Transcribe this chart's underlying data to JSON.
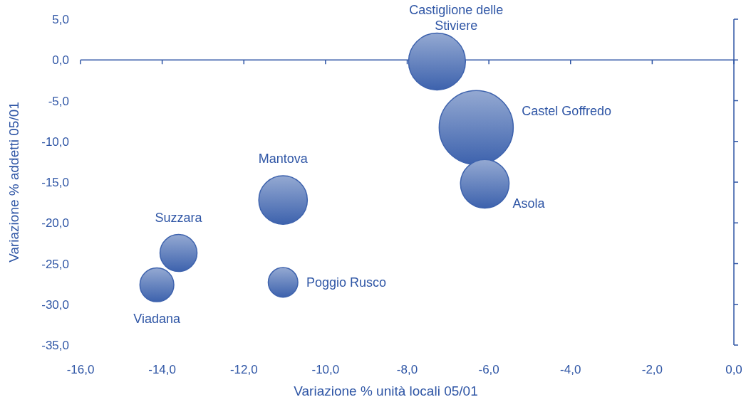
{
  "chart_data": {
    "type": "bubble",
    "xlabel": "Variazione % unità locali 05/01",
    "ylabel": "Variazione % addetti 05/01",
    "xlim": [
      -16,
      0
    ],
    "xticks": [
      {
        "value": -16,
        "label": "-16,0"
      },
      {
        "value": -14,
        "label": "-14,0"
      },
      {
        "value": -12,
        "label": "-12,0"
      },
      {
        "value": -10,
        "label": "-10,0"
      },
      {
        "value": -8,
        "label": "-8,0"
      },
      {
        "value": -6,
        "label": "-6,0"
      },
      {
        "value": -4,
        "label": "-4,0"
      },
      {
        "value": -2,
        "label": "-2,0"
      },
      {
        "value": 0,
        "label": "0,0"
      }
    ],
    "ylim": [
      -35,
      5
    ],
    "yticks": [
      {
        "value": 5,
        "label": "5,0"
      },
      {
        "value": 0,
        "label": "0,0"
      },
      {
        "value": -5,
        "label": "-5,0"
      },
      {
        "value": -10,
        "label": "-10,0"
      },
      {
        "value": -15,
        "label": "-15,0"
      },
      {
        "value": -20,
        "label": "-20,0"
      },
      {
        "value": -25,
        "label": "-25,0"
      },
      {
        "value": -30,
        "label": "-30,0"
      },
      {
        "value": -35,
        "label": "-35,0"
      }
    ],
    "ref_lines": [
      {
        "axis": "y",
        "value": 0,
        "color": "#2e55a5"
      }
    ],
    "series": [
      {
        "name": "Castiglione delle Stiviere",
        "color": "#3d62ad",
        "x": [
          -7.27
        ],
        "values": [
          -0.2
        ],
        "sizes": [
          0.59
        ]
      },
      {
        "name": "Castel Goffredo",
        "color": "#3d62ad",
        "x": [
          -6.31
        ],
        "values": [
          -8.3
        ],
        "sizes": [
          1
        ]
      },
      {
        "name": "Asola",
        "color": "#3d62ad",
        "x": [
          -6.1
        ],
        "values": [
          -15.2
        ],
        "sizes": [
          0.43
        ]
      },
      {
        "name": "Mantova",
        "color": "#3d62ad",
        "x": [
          -11.04
        ],
        "values": [
          -17.2
        ],
        "sizes": [
          0.43
        ]
      },
      {
        "name": "Suzzara",
        "color": "#3d62ad",
        "x": [
          -13.6
        ],
        "values": [
          -23.7
        ],
        "sizes": [
          0.25
        ]
      },
      {
        "name": "Viadana",
        "color": "#3d62ad",
        "x": [
          -14.13
        ],
        "values": [
          -27.6
        ],
        "sizes": [
          0.21
        ]
      },
      {
        "name": "Poggio Rusco",
        "color": "#3d62ad",
        "x": [
          -11.04
        ],
        "values": [
          -27.3
        ],
        "sizes": [
          0.16
        ]
      }
    ]
  }
}
